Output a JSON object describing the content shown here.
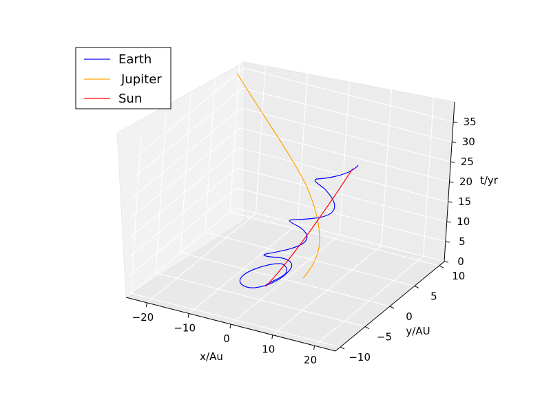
{
  "chart_data": {
    "type": "line",
    "projection": "3d",
    "xlabel": "x/Au",
    "ylabel": "y/AU",
    "zlabel": "t/yr",
    "x_ticks": [
      "−20",
      "−10",
      "0",
      "10",
      "20"
    ],
    "y_ticks": [
      "−10",
      "−5",
      "0",
      "5",
      "10"
    ],
    "z_ticks": [
      "0",
      "5",
      "10",
      "15",
      "20",
      "25",
      "30",
      "35"
    ],
    "xlim": [
      -25,
      25
    ],
    "ylim": [
      -11,
      11
    ],
    "zlim": [
      0,
      40
    ],
    "grid": true,
    "legend_position": "top-left",
    "legend": [
      "Earth",
      "Jupiter",
      "Sun"
    ],
    "series": [
      {
        "name": "Earth",
        "color": "#0000ff"
      },
      {
        "name": "Jupiter",
        "color": "#ffa500"
      },
      {
        "name": "Sun",
        "color": "#ff0000"
      }
    ]
  }
}
